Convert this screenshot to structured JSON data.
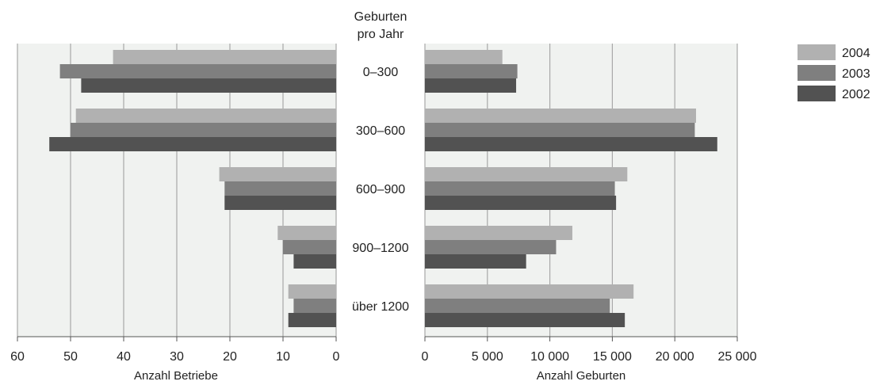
{
  "chart_data": {
    "type": "bar",
    "orientation": "horizontal",
    "center_title": [
      "Geburten",
      "pro Jahr"
    ],
    "categories": [
      "0–300",
      "300–600",
      "600–900",
      "900–1200",
      "über 1200"
    ],
    "legend": {
      "position": "right",
      "entries": [
        "2004",
        "2003",
        "2002"
      ]
    },
    "colors": {
      "2004": "#b1b1b1",
      "2003": "#7f7f7f",
      "2002": "#525252",
      "plot_bg": "#f0f2f0",
      "grid": "#a8a8a8",
      "axis": "#555555"
    },
    "panels": [
      {
        "id": "left",
        "direction": "reversed",
        "xlabel": "Anzahl Betriebe",
        "xlim": [
          0,
          60
        ],
        "ticks": [
          0,
          10,
          20,
          30,
          40,
          50,
          60
        ],
        "tick_labels": [
          "0",
          "10",
          "20",
          "30",
          "40",
          "50",
          "60"
        ],
        "grid": true,
        "series": [
          {
            "name": "2004",
            "values": [
              42,
              49,
              22,
              11,
              9
            ]
          },
          {
            "name": "2003",
            "values": [
              52,
              50,
              21,
              10,
              8
            ]
          },
          {
            "name": "2002",
            "values": [
              48,
              54,
              21,
              8,
              9
            ]
          }
        ]
      },
      {
        "id": "right",
        "direction": "normal",
        "xlabel": "Anzahl Geburten",
        "xlim": [
          0,
          25000
        ],
        "ticks": [
          0,
          5000,
          10000,
          15000,
          20000,
          25000
        ],
        "tick_labels": [
          "0",
          "5 000",
          "10 000",
          "15 000",
          "20 000",
          "25 000"
        ],
        "grid": true,
        "series": [
          {
            "name": "2004",
            "values": [
              6200,
              21700,
              16200,
              11800,
              16700
            ]
          },
          {
            "name": "2003",
            "values": [
              7400,
              21600,
              15200,
              10500,
              14800
            ]
          },
          {
            "name": "2002",
            "values": [
              7300,
              23400,
              15300,
              8100,
              16000
            ]
          }
        ]
      }
    ]
  }
}
